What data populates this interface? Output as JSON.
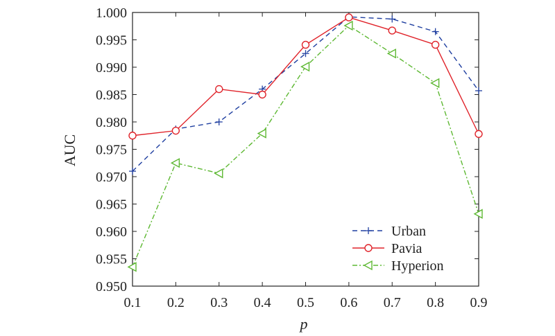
{
  "chart_data": {
    "type": "line",
    "xlabel": "p",
    "ylabel": "AUC",
    "x": [
      0.1,
      0.2,
      0.3,
      0.4,
      0.5,
      0.6,
      0.7,
      0.8,
      0.9
    ],
    "x_ticks": [
      "0.1",
      "0.2",
      "0.3",
      "0.4",
      "0.5",
      "0.6",
      "0.7",
      "0.8",
      "0.9"
    ],
    "y_ticks": [
      "0.950",
      "0.955",
      "0.960",
      "0.965",
      "0.970",
      "0.975",
      "0.980",
      "0.985",
      "0.990",
      "0.995",
      "1.000"
    ],
    "xlim": [
      0.1,
      0.9
    ],
    "ylim": [
      0.95,
      1.0
    ],
    "grid": false,
    "legend_position": "bottom-right",
    "series": [
      {
        "name": "Urban",
        "color": "#1f3fa0",
        "line_style": "dashed",
        "marker": "plus",
        "values": [
          0.971,
          0.9787,
          0.98,
          0.986,
          0.9925,
          0.9992,
          0.9988,
          0.9965,
          0.9857
        ]
      },
      {
        "name": "Pavia",
        "color": "#e0232a",
        "line_style": "solid",
        "marker": "circle",
        "values": [
          0.9775,
          0.9784,
          0.986,
          0.985,
          0.9941,
          0.9991,
          0.9967,
          0.9941,
          0.9778
        ]
      },
      {
        "name": "Hyperion",
        "color": "#5db832",
        "line_style": "dashdot",
        "marker": "triangle-left",
        "values": [
          0.9535,
          0.9725,
          0.9706,
          0.9779,
          0.9901,
          0.9976,
          0.9925,
          0.9871,
          0.9632
        ]
      }
    ]
  }
}
